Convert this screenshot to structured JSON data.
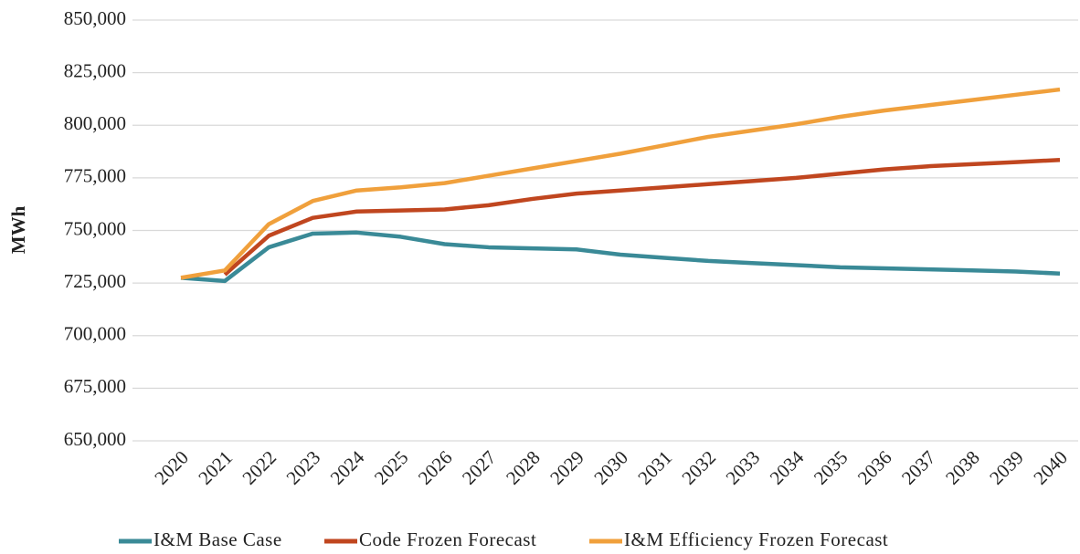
{
  "chart_data": {
    "type": "line",
    "y_label": "MWh",
    "categories": [
      "2020",
      "2021",
      "2022",
      "2023",
      "2024",
      "2025",
      "2026",
      "2027",
      "2028",
      "2029",
      "2030",
      "2031",
      "2032",
      "2033",
      "2034",
      "2035",
      "2036",
      "2037",
      "2038",
      "2039",
      "2040"
    ],
    "series": [
      {
        "name": "I&M Base Case",
        "color": "#3a8a97",
        "values": [
          727500,
          726000,
          742000,
          748500,
          749000,
          747000,
          743500,
          742000,
          741500,
          741000,
          738500,
          737000,
          735500,
          734500,
          733500,
          732500,
          732000,
          731500,
          731000,
          730500,
          729500
        ]
      },
      {
        "name": "Code Frozen Forecast",
        "color": "#c0461f",
        "values": [
          null,
          729000,
          747500,
          756000,
          759000,
          759500,
          760000,
          762000,
          765000,
          767500,
          769000,
          770500,
          772000,
          773500,
          775000,
          777000,
          779000,
          780500,
          781500,
          782500,
          783500
        ]
      },
      {
        "name": "I&M Efficiency Frozen Forecast",
        "color": "#f0a03c",
        "values": [
          727500,
          731000,
          753000,
          764000,
          769000,
          770500,
          772500,
          776000,
          779500,
          783000,
          786500,
          790500,
          794500,
          797500,
          800500,
          804000,
          807000,
          809500,
          812000,
          814500,
          817000
        ]
      }
    ],
    "ylim": [
      650000,
      850000
    ],
    "yticks": [
      {
        "value": 650000,
        "label": "650,000"
      },
      {
        "value": 675000,
        "label": "675,000"
      },
      {
        "value": 700000,
        "label": "700,000"
      },
      {
        "value": 725000,
        "label": "725,000"
      },
      {
        "value": 750000,
        "label": "750,000"
      },
      {
        "value": 775000,
        "label": "775,000"
      },
      {
        "value": 800000,
        "label": "800,000"
      },
      {
        "value": 825000,
        "label": "825,000"
      },
      {
        "value": 850000,
        "label": "850,000"
      }
    ],
    "grid": true,
    "legend": "bottom"
  }
}
